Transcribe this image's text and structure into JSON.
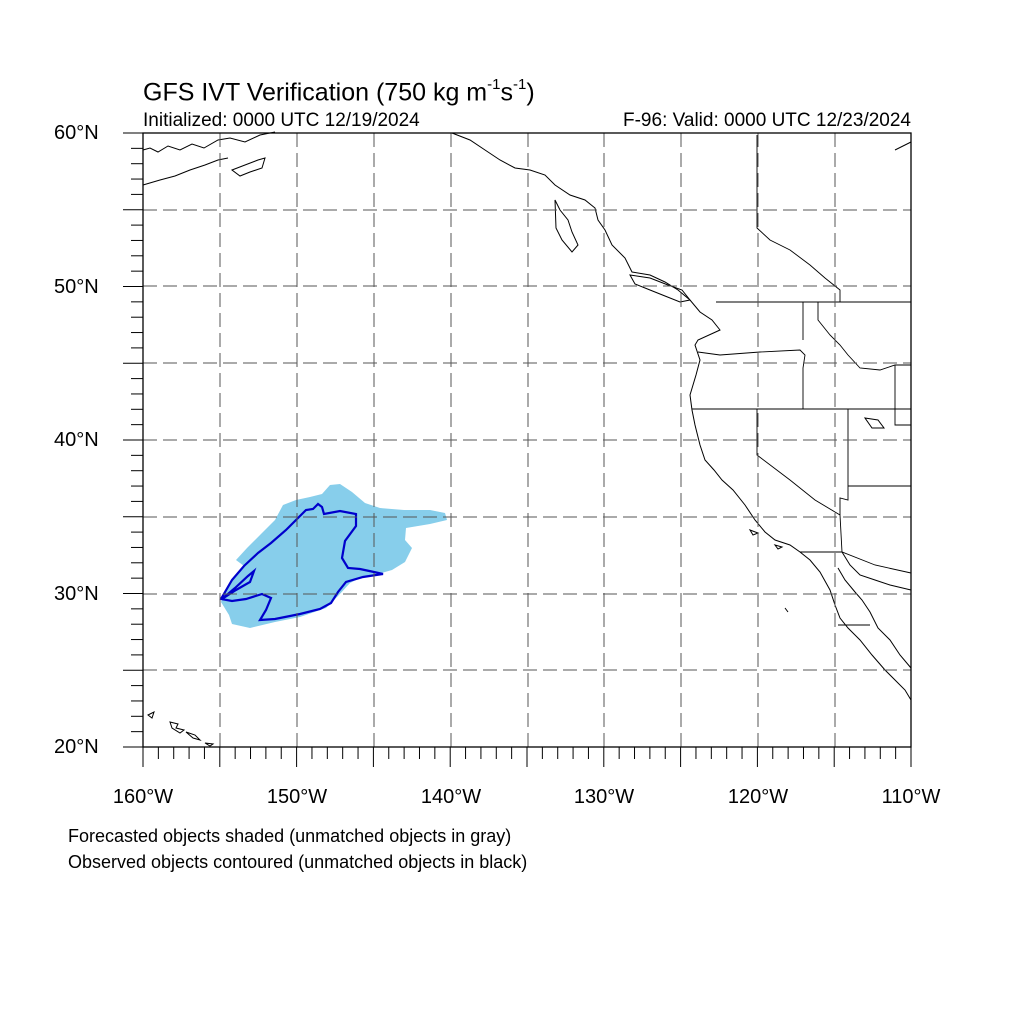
{
  "title": {
    "main": "GFS IVT Verification (750 kg m",
    "sup1": "-1",
    "mid": "s",
    "sup2": "-1",
    "end": ")"
  },
  "subtitle": {
    "initialized": "Initialized: 0000 UTC 12/19/2024",
    "valid": "F-96: Valid: 0000 UTC 12/23/2024"
  },
  "map": {
    "lon_range": [
      -160,
      -110
    ],
    "lat_range": [
      20,
      60
    ],
    "lat_labels": [
      "60°N",
      "50°N",
      "40°N",
      "30°N",
      "20°N"
    ],
    "lon_labels": [
      "160°W",
      "150°W",
      "140°W",
      "130°W",
      "120°W",
      "110°W"
    ],
    "colors": {
      "forecast_fill": "#87ceeb",
      "observed_contour": "#0000cc",
      "coastline": "#000000",
      "grid": "#555555"
    }
  },
  "notes": {
    "line1": "Forecasted objects shaded (unmatched objects in gray)",
    "line2": "Observed objects contoured (unmatched objects in black)"
  }
}
